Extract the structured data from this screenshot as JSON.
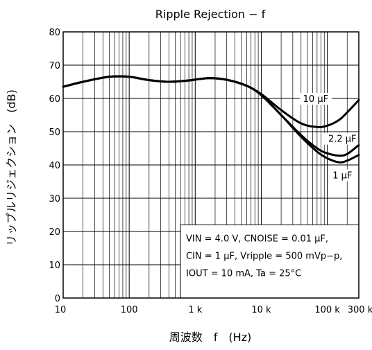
{
  "chart_data": {
    "type": "line",
    "title": "Ripple Rejection − f",
    "xlabel": "周波数　f　(Hz)",
    "ylabel": "リップルリジェクション　(dB)",
    "x_scale": "log",
    "xlim": [
      10,
      300000
    ],
    "ylim": [
      0,
      80
    ],
    "grid": true,
    "x_tick_labels": [
      {
        "value": 10,
        "label": "10"
      },
      {
        "value": 100,
        "label": "100"
      },
      {
        "value": 1000,
        "label": "1 k"
      },
      {
        "value": 10000,
        "label": "10 k"
      },
      {
        "value": 100000,
        "label": "100 k"
      },
      {
        "value": 300000,
        "label": "300 k"
      }
    ],
    "y_tick_labels": [
      {
        "value": 0,
        "label": "0"
      },
      {
        "value": 10,
        "label": "10"
      },
      {
        "value": 20,
        "label": "20"
      },
      {
        "value": 30,
        "label": "30"
      },
      {
        "value": 40,
        "label": "40"
      },
      {
        "value": 50,
        "label": "50"
      },
      {
        "value": 60,
        "label": "60"
      },
      {
        "value": 70,
        "label": "70"
      },
      {
        "value": 80,
        "label": "80"
      }
    ],
    "series": [
      {
        "name": "10 μF",
        "x": [
          10,
          20,
          50,
          100,
          200,
          400,
          800,
          1600,
          3000,
          6000,
          10000,
          20000,
          40000,
          70000,
          100000,
          150000,
          200000,
          300000
        ],
        "y": [
          63.5,
          65.0,
          66.5,
          66.5,
          65.5,
          65.0,
          65.4,
          66.1,
          65.6,
          63.8,
          61.3,
          56.5,
          52.5,
          51.4,
          51.8,
          53.5,
          55.8,
          59.5
        ]
      },
      {
        "name": "2.2 μF",
        "x": [
          10,
          20,
          50,
          100,
          200,
          400,
          800,
          1600,
          3000,
          6000,
          10000,
          20000,
          40000,
          70000,
          100000,
          150000,
          200000,
          300000
        ],
        "y": [
          63.5,
          65.0,
          66.5,
          66.5,
          65.5,
          65.0,
          65.4,
          66.1,
          65.6,
          63.8,
          61.0,
          55.0,
          49.0,
          45.0,
          43.5,
          42.8,
          43.3,
          46.0
        ]
      },
      {
        "name": "1 μF",
        "x": [
          10,
          20,
          50,
          100,
          200,
          400,
          800,
          1600,
          3000,
          6000,
          10000,
          20000,
          40000,
          70000,
          100000,
          150000,
          200000,
          300000
        ],
        "y": [
          63.5,
          65.0,
          66.5,
          66.5,
          65.5,
          65.0,
          65.4,
          66.1,
          65.6,
          63.8,
          61.0,
          55.0,
          48.5,
          44.0,
          42.0,
          40.8,
          41.3,
          43.0
        ]
      }
    ],
    "annotation_lines": [
      "VIN = 4.0 V, CNOISE = 0.01 μF,",
      "CIN = 1 μF, Vripple = 500 mVp−p,",
      "IOUT = 10 mA, Ta = 25°C"
    ],
    "line_color": "#000000",
    "grid_color": "#000000"
  }
}
